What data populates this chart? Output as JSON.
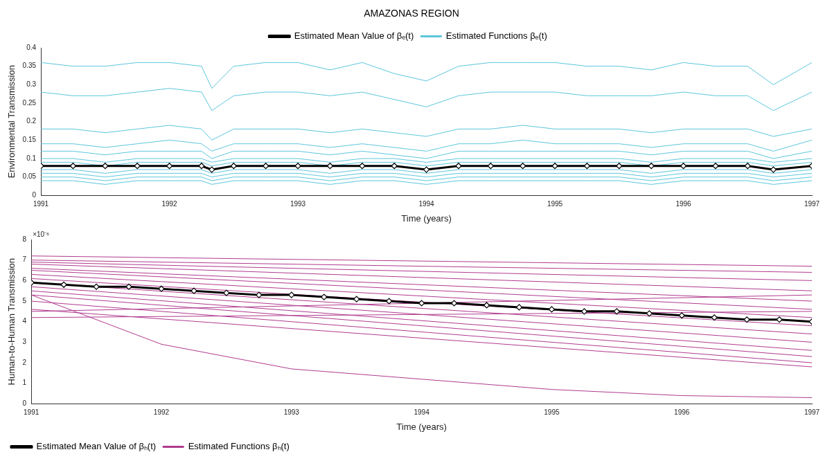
{
  "chart_data": [
    {
      "type": "line",
      "title": "AMAZONAS REGION",
      "xlabel": "Time (years)",
      "ylabel": "Environmental Transmission",
      "legend": "top",
      "grid": false,
      "xlim": [
        1991,
        1997
      ],
      "xticks": [
        1991,
        1992,
        1993,
        1994,
        1995,
        1996,
        1997
      ],
      "ylim": [
        0,
        0.4
      ],
      "yticks": [
        0,
        0.05,
        0.1,
        0.15,
        0.2,
        0.25,
        0.3,
        0.35,
        0.4
      ],
      "x": [
        1991,
        1991.25,
        1991.5,
        1991.75,
        1992,
        1992.25,
        1992.33,
        1992.5,
        1992.75,
        1993,
        1993.25,
        1993.5,
        1993.75,
        1994,
        1994.25,
        1994.5,
        1994.75,
        1995,
        1995.25,
        1995.5,
        1995.75,
        1996,
        1996.25,
        1996.5,
        1996.7,
        1997
      ],
      "series": [
        {
          "name": "Estimated Mean Value of βₑ(t)",
          "color": "#000000",
          "marker": "diamond",
          "values": [
            0.08,
            0.08,
            0.08,
            0.08,
            0.08,
            0.08,
            0.07,
            0.08,
            0.08,
            0.08,
            0.08,
            0.08,
            0.08,
            0.07,
            0.08,
            0.08,
            0.08,
            0.08,
            0.08,
            0.08,
            0.08,
            0.08,
            0.08,
            0.08,
            0.07,
            0.08
          ]
        },
        {
          "name": "Estimated Functions βₑ(t)",
          "color": "#5bc6dc",
          "values": [
            0.36,
            0.35,
            0.35,
            0.36,
            0.36,
            0.35,
            0.29,
            0.35,
            0.36,
            0.36,
            0.34,
            0.36,
            0.33,
            0.31,
            0.35,
            0.36,
            0.36,
            0.36,
            0.35,
            0.35,
            0.34,
            0.36,
            0.35,
            0.35,
            0.3,
            0.36
          ]
        },
        {
          "color": "#5bc6dc",
          "values": [
            0.28,
            0.27,
            0.27,
            0.28,
            0.29,
            0.28,
            0.23,
            0.27,
            0.28,
            0.28,
            0.27,
            0.28,
            0.26,
            0.24,
            0.27,
            0.28,
            0.28,
            0.28,
            0.27,
            0.27,
            0.27,
            0.28,
            0.27,
            0.27,
            0.23,
            0.28
          ]
        },
        {
          "color": "#5bc6dc",
          "values": [
            0.18,
            0.18,
            0.17,
            0.18,
            0.19,
            0.18,
            0.15,
            0.18,
            0.18,
            0.18,
            0.17,
            0.18,
            0.17,
            0.16,
            0.18,
            0.18,
            0.19,
            0.18,
            0.18,
            0.18,
            0.17,
            0.18,
            0.18,
            0.18,
            0.16,
            0.18
          ]
        },
        {
          "color": "#5bc6dc",
          "values": [
            0.14,
            0.14,
            0.13,
            0.14,
            0.15,
            0.14,
            0.12,
            0.14,
            0.14,
            0.14,
            0.13,
            0.14,
            0.13,
            0.12,
            0.14,
            0.14,
            0.15,
            0.14,
            0.14,
            0.14,
            0.13,
            0.14,
            0.14,
            0.14,
            0.12,
            0.15
          ]
        },
        {
          "color": "#5bc6dc",
          "values": [
            0.12,
            0.12,
            0.11,
            0.12,
            0.12,
            0.12,
            0.1,
            0.12,
            0.12,
            0.12,
            0.11,
            0.12,
            0.11,
            0.1,
            0.12,
            0.12,
            0.12,
            0.12,
            0.12,
            0.12,
            0.11,
            0.12,
            0.12,
            0.12,
            0.1,
            0.12
          ]
        },
        {
          "color": "#5bc6dc",
          "values": [
            0.1,
            0.1,
            0.09,
            0.1,
            0.1,
            0.1,
            0.09,
            0.1,
            0.1,
            0.1,
            0.09,
            0.1,
            0.1,
            0.09,
            0.1,
            0.1,
            0.1,
            0.1,
            0.1,
            0.1,
            0.09,
            0.1,
            0.1,
            0.1,
            0.09,
            0.1
          ]
        },
        {
          "color": "#5bc6dc",
          "values": [
            0.09,
            0.09,
            0.08,
            0.09,
            0.09,
            0.09,
            0.08,
            0.09,
            0.09,
            0.09,
            0.08,
            0.09,
            0.09,
            0.08,
            0.09,
            0.09,
            0.09,
            0.09,
            0.09,
            0.09,
            0.08,
            0.09,
            0.09,
            0.09,
            0.08,
            0.09
          ]
        },
        {
          "color": "#5bc6dc",
          "values": [
            0.07,
            0.07,
            0.06,
            0.07,
            0.07,
            0.07,
            0.06,
            0.07,
            0.07,
            0.07,
            0.06,
            0.07,
            0.07,
            0.06,
            0.07,
            0.07,
            0.07,
            0.07,
            0.07,
            0.07,
            0.06,
            0.07,
            0.07,
            0.07,
            0.06,
            0.07
          ]
        },
        {
          "color": "#5bc6dc",
          "values": [
            0.06,
            0.06,
            0.05,
            0.06,
            0.06,
            0.06,
            0.05,
            0.06,
            0.06,
            0.06,
            0.05,
            0.06,
            0.06,
            0.05,
            0.06,
            0.06,
            0.06,
            0.06,
            0.06,
            0.06,
            0.05,
            0.06,
            0.06,
            0.06,
            0.05,
            0.06
          ]
        },
        {
          "color": "#5bc6dc",
          "values": [
            0.05,
            0.05,
            0.04,
            0.05,
            0.05,
            0.05,
            0.04,
            0.05,
            0.05,
            0.05,
            0.04,
            0.05,
            0.05,
            0.04,
            0.05,
            0.05,
            0.05,
            0.05,
            0.05,
            0.05,
            0.04,
            0.05,
            0.05,
            0.05,
            0.04,
            0.05
          ]
        },
        {
          "color": "#5bc6dc",
          "values": [
            0.04,
            0.04,
            0.03,
            0.04,
            0.04,
            0.04,
            0.03,
            0.04,
            0.04,
            0.04,
            0.03,
            0.04,
            0.04,
            0.03,
            0.04,
            0.04,
            0.04,
            0.04,
            0.04,
            0.04,
            0.03,
            0.04,
            0.04,
            0.04,
            0.03,
            0.04
          ]
        }
      ]
    },
    {
      "type": "line",
      "xlabel": "Time (years)",
      "ylabel": "Human-to-Human Transmission",
      "legend": "bottom left",
      "grid": false,
      "annotations": [
        "×10⁻⁶"
      ],
      "xlim": [
        1991,
        1997
      ],
      "xticks": [
        1991,
        1992,
        1993,
        1994,
        1995,
        1996,
        1997
      ],
      "ylim": [
        0,
        8
      ],
      "yticks": [
        0,
        1,
        2,
        3,
        4,
        5,
        6,
        7,
        8
      ],
      "x": [
        1991,
        1991.25,
        1991.5,
        1991.75,
        1992,
        1992.25,
        1992.5,
        1992.75,
        1993,
        1993.25,
        1993.5,
        1993.75,
        1994,
        1994.25,
        1994.5,
        1994.75,
        1995,
        1995.25,
        1995.5,
        1995.75,
        1996,
        1996.25,
        1996.5,
        1996.75,
        1997
      ],
      "series": [
        {
          "name": "Estimated Mean Value of βₕ(t)",
          "color": "#000000",
          "marker": "diamond",
          "values": [
            5.9,
            5.8,
            5.7,
            5.7,
            5.6,
            5.5,
            5.4,
            5.3,
            5.3,
            5.2,
            5.1,
            5.0,
            4.9,
            4.9,
            4.8,
            4.7,
            4.6,
            4.5,
            4.5,
            4.4,
            4.3,
            4.2,
            4.1,
            4.1,
            4.0
          ]
        },
        {
          "name": "Estimated Functions βₕ(t)",
          "color": "#b03a8e",
          "x": [
            1991,
            1997
          ],
          "values": [
            7.2,
            6.7
          ]
        },
        {
          "color": "#b03a8e",
          "x": [
            1991,
            1997
          ],
          "values": [
            7.0,
            6.4
          ]
        },
        {
          "color": "#b03a8e",
          "x": [
            1991,
            1997
          ],
          "values": [
            6.9,
            6.0
          ]
        },
        {
          "color": "#b03a8e",
          "x": [
            1991,
            1997
          ],
          "values": [
            6.8,
            5.5
          ]
        },
        {
          "color": "#b03a8e",
          "x": [
            1991,
            1997
          ],
          "values": [
            6.6,
            5.0
          ]
        },
        {
          "color": "#b03a8e",
          "x": [
            1991,
            1997
          ],
          "values": [
            6.5,
            4.6
          ]
        },
        {
          "color": "#b03a8e",
          "x": [
            1991,
            1997
          ],
          "values": [
            6.3,
            4.2
          ]
        },
        {
          "color": "#b03a8e",
          "x": [
            1991,
            1997
          ],
          "values": [
            6.1,
            3.8
          ]
        },
        {
          "color": "#b03a8e",
          "x": [
            1991,
            1997
          ],
          "values": [
            5.9,
            3.4
          ]
        },
        {
          "color": "#b03a8e",
          "x": [
            1991,
            1997
          ],
          "values": [
            5.7,
            3.0
          ]
        },
        {
          "color": "#b03a8e",
          "x": [
            1991,
            1997
          ],
          "values": [
            5.5,
            2.6
          ]
        },
        {
          "color": "#b03a8e",
          "x": [
            1991,
            1997
          ],
          "values": [
            5.3,
            2.3
          ]
        },
        {
          "color": "#b03a8e",
          "x": [
            1991,
            1997
          ],
          "values": [
            5.0,
            2.0
          ]
        },
        {
          "color": "#b03a8e",
          "x": [
            1991,
            1997
          ],
          "values": [
            4.6,
            1.8
          ]
        },
        {
          "color": "#b03a8e",
          "x": [
            1991,
            1997
          ],
          "values": [
            4.2,
            4.5
          ]
        },
        {
          "color": "#b03a8e",
          "x": [
            1991,
            1997
          ],
          "values": [
            4.5,
            5.3
          ]
        },
        {
          "color": "#b03a8e",
          "x": [
            1991,
            1992,
            1993,
            1994,
            1995,
            1996,
            1997
          ],
          "values": [
            5.3,
            2.9,
            1.7,
            1.2,
            0.7,
            0.4,
            0.3
          ]
        }
      ]
    }
  ]
}
